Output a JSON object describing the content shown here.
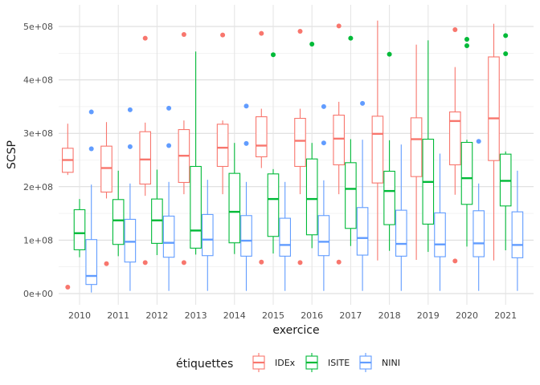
{
  "chart_data": {
    "type": "boxplot",
    "xlabel": "exercice",
    "ylabel": "SCSP",
    "ylim": [
      0,
      530000000
    ],
    "y_ticks": [
      {
        "value": 0,
        "label": "0e+00"
      },
      {
        "value": 100000000,
        "label": "1e+08"
      },
      {
        "value": 200000000,
        "label": "2e+08"
      },
      {
        "value": 300000000,
        "label": "3e+08"
      },
      {
        "value": 400000000,
        "label": "4e+08"
      },
      {
        "value": 500000000,
        "label": "5e+08"
      }
    ],
    "categories": [
      "2010",
      "2011",
      "2012",
      "2013",
      "2014",
      "2015",
      "2016",
      "2017",
      "2018",
      "2019",
      "2020",
      "2021"
    ],
    "grid": true,
    "legend": {
      "title": "étiquettes",
      "position": "bottom"
    },
    "series": [
      {
        "name": "IDEx",
        "color": "#F8766D",
        "boxes": [
          {
            "min": 222000000,
            "q1": 227000000,
            "median": 250000000,
            "q3": 272000000,
            "max": 318000000,
            "outliers": [
              12000000
            ]
          },
          {
            "min": 178000000,
            "q1": 190000000,
            "median": 235000000,
            "q3": 276000000,
            "max": 321000000,
            "outliers": [
              56000000
            ]
          },
          {
            "min": 183000000,
            "q1": 205000000,
            "median": 251000000,
            "q3": 303000000,
            "max": 320000000,
            "outliers": [
              478000000,
              58000000
            ]
          },
          {
            "min": 186000000,
            "q1": 208000000,
            "median": 258000000,
            "q3": 307000000,
            "max": 324000000,
            "outliers": [
              485000000,
              58000000
            ]
          },
          {
            "min": 186000000,
            "q1": 238000000,
            "median": 273000000,
            "q3": 317000000,
            "max": 324000000,
            "outliers": [
              484000000
            ]
          },
          {
            "min": 235000000,
            "q1": 256000000,
            "median": 277000000,
            "q3": 331000000,
            "max": 346000000,
            "outliers": [
              487000000,
              59000000
            ]
          },
          {
            "min": 186000000,
            "q1": 238000000,
            "median": 286000000,
            "q3": 328000000,
            "max": 346000000,
            "outliers": [
              491000000,
              58000000
            ]
          },
          {
            "min": 186000000,
            "q1": 241000000,
            "median": 290000000,
            "q3": 334000000,
            "max": 359000000,
            "outliers": [
              501000000,
              59000000
            ]
          },
          {
            "min": 62000000,
            "q1": 207000000,
            "median": 299000000,
            "q3": 332000000,
            "max": 511000000,
            "outliers": []
          },
          {
            "min": 63000000,
            "q1": 219000000,
            "median": 289000000,
            "q3": 329000000,
            "max": 466000000,
            "outliers": []
          },
          {
            "min": 185000000,
            "q1": 241000000,
            "median": 323000000,
            "q3": 340000000,
            "max": 424000000,
            "outliers": [
              494000000,
              61000000
            ]
          },
          {
            "min": 62000000,
            "q1": 249000000,
            "median": 328000000,
            "q3": 443000000,
            "max": 505000000,
            "outliers": []
          }
        ]
      },
      {
        "name": "ISITE",
        "color": "#00BA38",
        "boxes": [
          {
            "min": 68000000,
            "q1": 82000000,
            "median": 113000000,
            "q3": 157000000,
            "max": 177000000,
            "outliers": []
          },
          {
            "min": 70000000,
            "q1": 92000000,
            "median": 137000000,
            "q3": 176000000,
            "max": 230000000,
            "outliers": []
          },
          {
            "min": 72000000,
            "q1": 94000000,
            "median": 137000000,
            "q3": 177000000,
            "max": 232000000,
            "outliers": []
          },
          {
            "min": 73000000,
            "q1": 85000000,
            "median": 118000000,
            "q3": 238000000,
            "max": 453000000,
            "outliers": []
          },
          {
            "min": 74000000,
            "q1": 95000000,
            "median": 153000000,
            "q3": 225000000,
            "max": 282000000,
            "outliers": []
          },
          {
            "min": 75000000,
            "q1": 107000000,
            "median": 177000000,
            "q3": 224000000,
            "max": 233000000,
            "outliers": [
              447000000
            ]
          },
          {
            "min": 85000000,
            "q1": 110000000,
            "median": 177000000,
            "q3": 252000000,
            "max": 282000000,
            "outliers": [
              467000000
            ]
          },
          {
            "min": 89000000,
            "q1": 122000000,
            "median": 196000000,
            "q3": 245000000,
            "max": 289000000,
            "outliers": [
              478000000
            ]
          },
          {
            "min": 80000000,
            "q1": 129000000,
            "median": 192000000,
            "q3": 229000000,
            "max": 287000000,
            "outliers": [
              448000000
            ]
          },
          {
            "min": 78000000,
            "q1": 130000000,
            "median": 209000000,
            "q3": 289000000,
            "max": 474000000,
            "outliers": []
          },
          {
            "min": 88000000,
            "q1": 167000000,
            "median": 216000000,
            "q3": 283000000,
            "max": 288000000,
            "outliers": [
              476000000,
              464000000
            ]
          },
          {
            "min": 81000000,
            "q1": 164000000,
            "median": 211000000,
            "q3": 261000000,
            "max": 266000000,
            "outliers": [
              483000000,
              449000000
            ]
          }
        ]
      },
      {
        "name": "NINI",
        "color": "#619CFF",
        "boxes": [
          {
            "min": 2000000,
            "q1": 17000000,
            "median": 33000000,
            "q3": 101000000,
            "max": 204000000,
            "outliers": [
              340000000,
              271000000
            ]
          },
          {
            "min": 5000000,
            "q1": 59000000,
            "median": 97000000,
            "q3": 139000000,
            "max": 206000000,
            "outliers": [
              344000000,
              275000000
            ]
          },
          {
            "min": 5000000,
            "q1": 68000000,
            "median": 95000000,
            "q3": 145000000,
            "max": 209000000,
            "outliers": [
              347000000,
              277000000
            ]
          },
          {
            "min": 5000000,
            "q1": 71000000,
            "median": 101000000,
            "q3": 148000000,
            "max": 213000000,
            "outliers": []
          },
          {
            "min": 5000000,
            "q1": 70000000,
            "median": 99000000,
            "q3": 146000000,
            "max": 209000000,
            "outliers": [
              351000000,
              281000000
            ]
          },
          {
            "min": 5000000,
            "q1": 70000000,
            "median": 91000000,
            "q3": 141000000,
            "max": 209000000,
            "outliers": []
          },
          {
            "min": 5000000,
            "q1": 71000000,
            "median": 97000000,
            "q3": 146000000,
            "max": 212000000,
            "outliers": [
              350000000,
              282000000
            ]
          },
          {
            "min": 5000000,
            "q1": 72000000,
            "median": 104000000,
            "q3": 161000000,
            "max": 288000000,
            "outliers": [
              356000000
            ]
          },
          {
            "min": 5000000,
            "q1": 70000000,
            "median": 93000000,
            "q3": 156000000,
            "max": 279000000,
            "outliers": []
          },
          {
            "min": 5000000,
            "q1": 69000000,
            "median": 92000000,
            "q3": 151000000,
            "max": 262000000,
            "outliers": []
          },
          {
            "min": 5000000,
            "q1": 69000000,
            "median": 94000000,
            "q3": 155000000,
            "max": 206000000,
            "outliers": [
              285000000
            ]
          },
          {
            "min": 5000000,
            "q1": 67000000,
            "median": 91000000,
            "q3": 153000000,
            "max": 230000000,
            "outliers": []
          }
        ]
      }
    ]
  }
}
